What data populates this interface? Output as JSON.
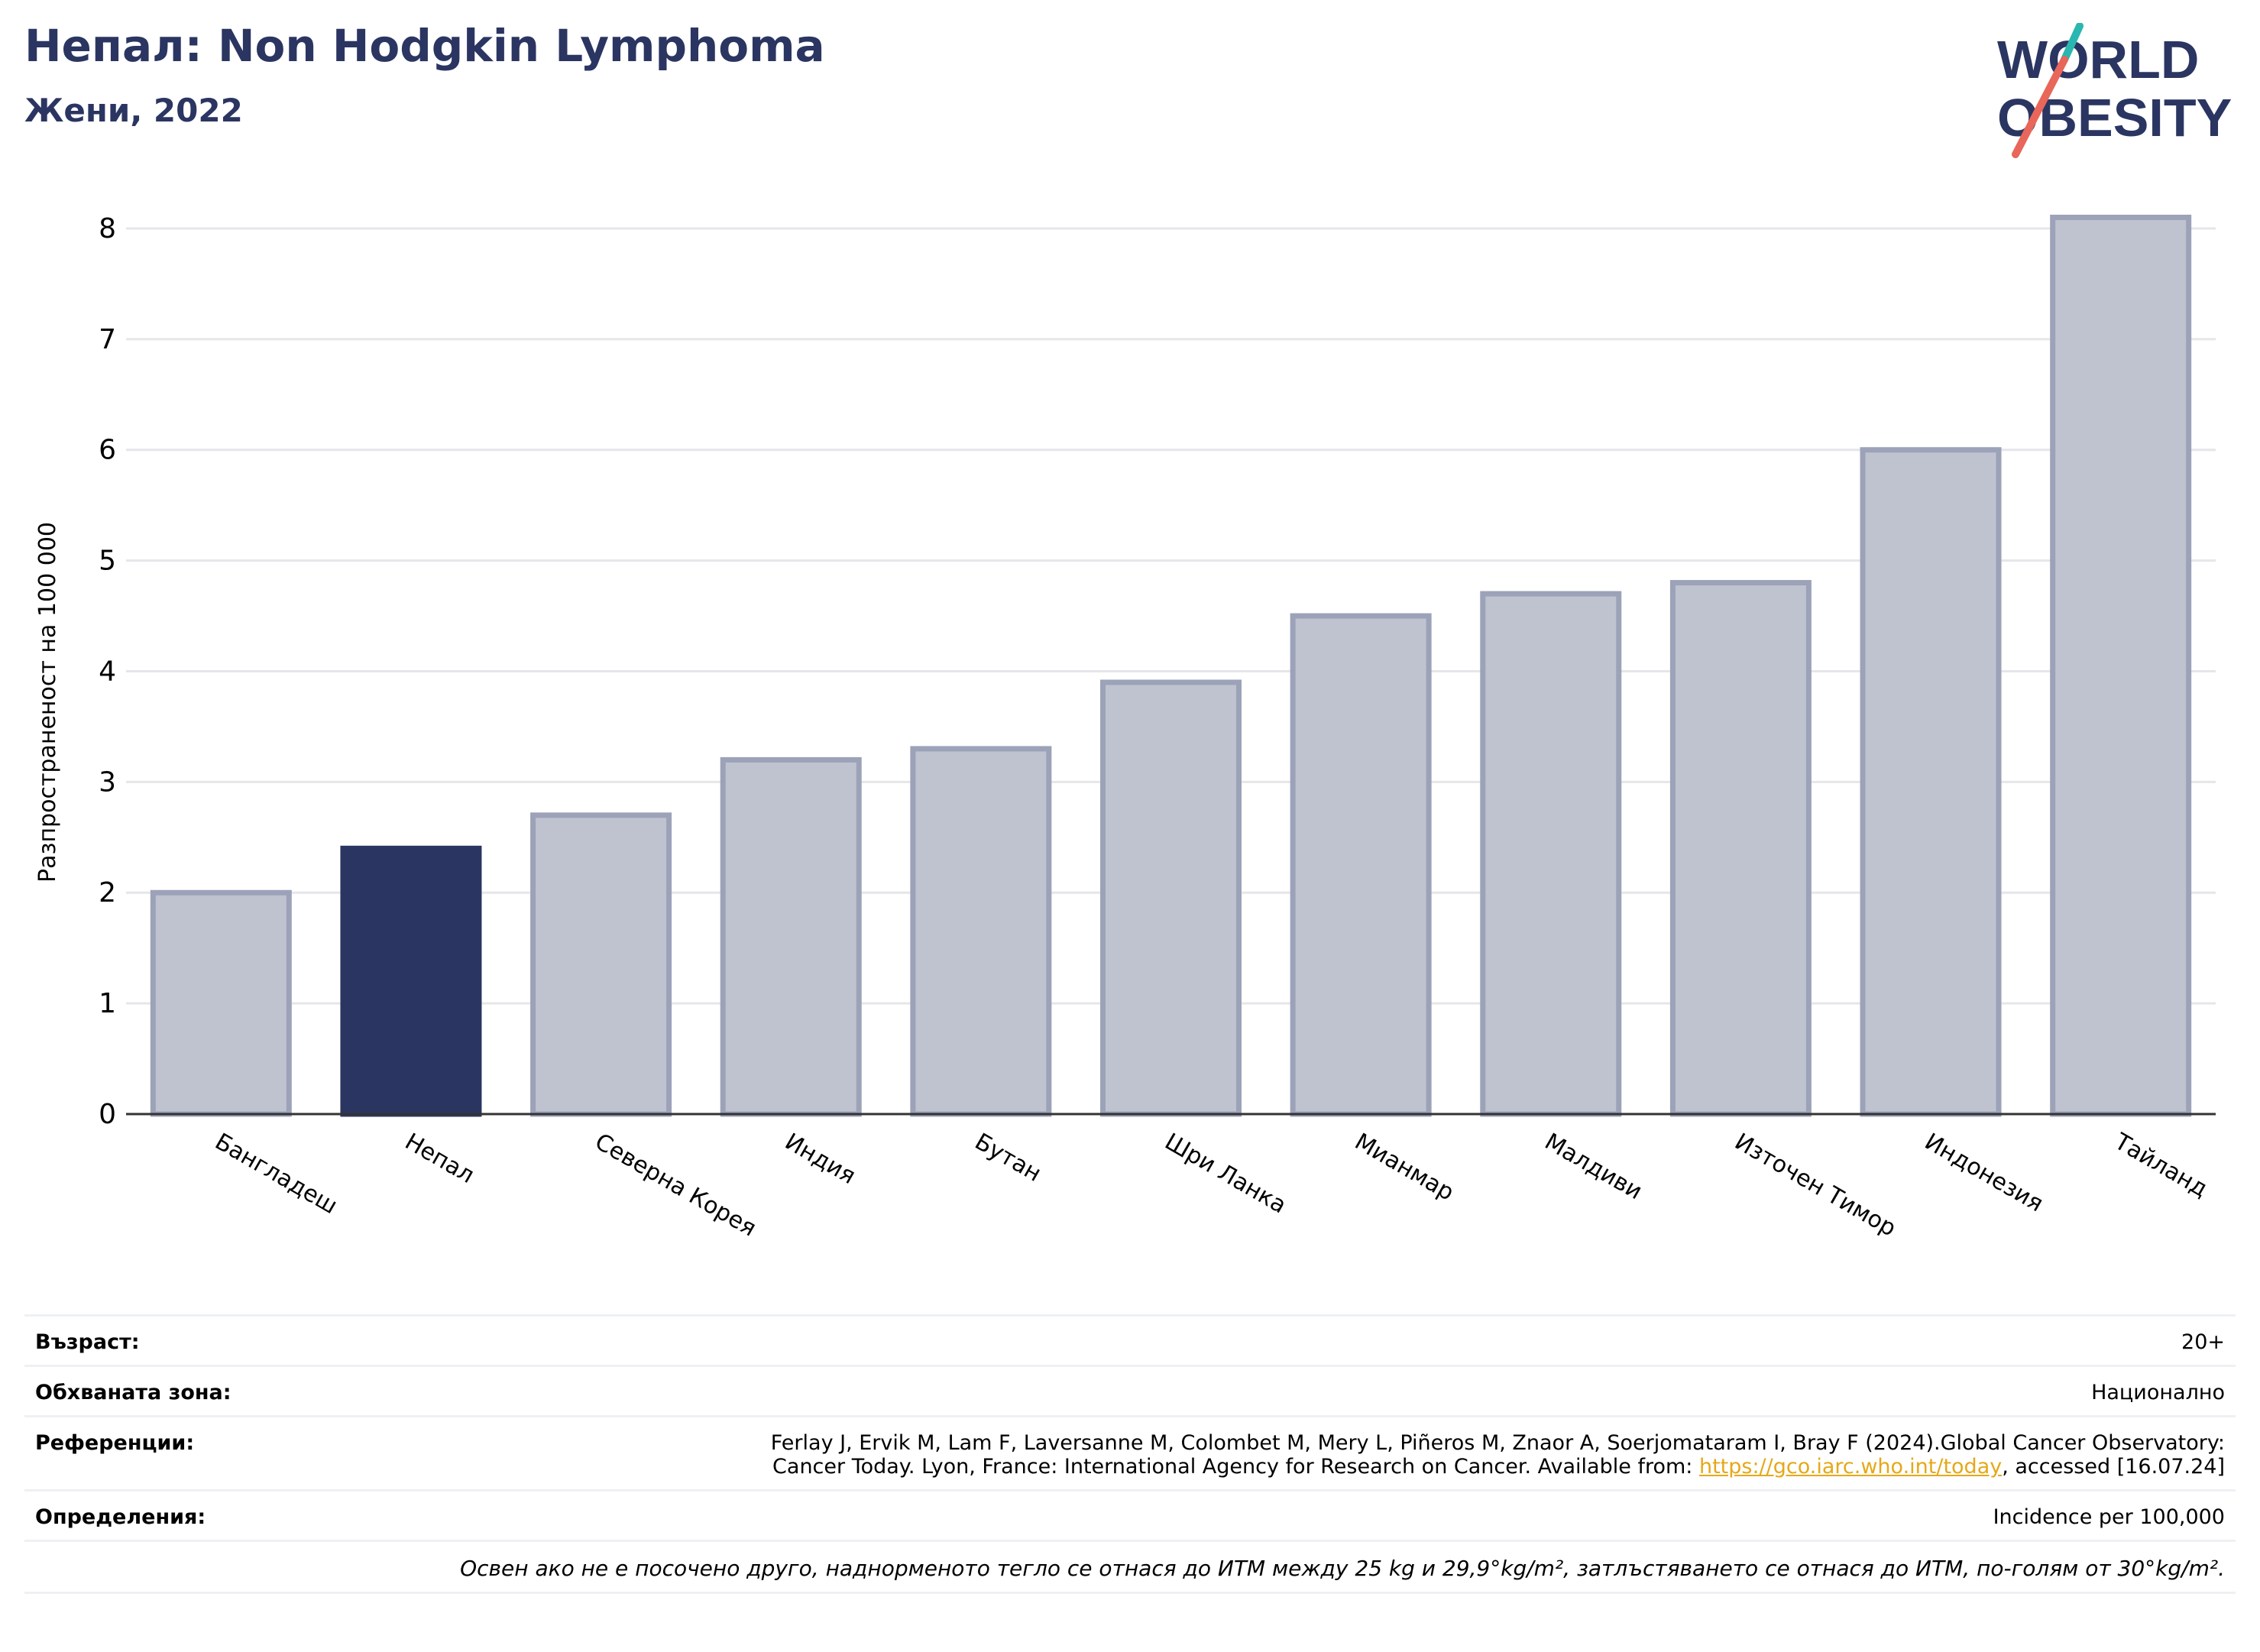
{
  "header": {
    "title": "Непал: Non Hodgkin Lymphoma",
    "subtitle": "Жени, 2022"
  },
  "logo": {
    "line1": "WORLD",
    "line2": "OBESITY",
    "colors": {
      "text": "#2b3561",
      "slash_teal": "#2ab7b0",
      "slash_red": "#e8665a"
    }
  },
  "chart_data": {
    "type": "bar",
    "title": "",
    "xlabel": "",
    "ylabel": "Разпространеност  на 100 000",
    "ylim": [
      0,
      8.2
    ],
    "yticks": [
      0,
      1,
      2,
      3,
      4,
      5,
      6,
      7,
      8
    ],
    "grid": true,
    "categories": [
      "Бангладеш",
      "Непал",
      "Северна Корея",
      "Индия",
      "Бутан",
      "Шри Ланка",
      "Мианмар",
      "Малдиви",
      "Източен Тимор",
      "Индонезия",
      "Тайланд"
    ],
    "values": [
      2.0,
      2.4,
      2.7,
      3.2,
      3.3,
      3.9,
      4.5,
      4.7,
      4.8,
      6.0,
      8.1
    ],
    "highlight": "Непал",
    "colors": {
      "bar": "#bfc3d0",
      "bar_edge": "#9ca2b8",
      "highlight": "#2b3561",
      "grid": "#e6e6ea",
      "axis": "#333333"
    }
  },
  "info": {
    "age_label": "Възраст:",
    "age_value": "20+",
    "coverage_label": "Обхваната зона:",
    "coverage_value": "Национално",
    "references_label": "Референции:",
    "references_line1": "Ferlay J, Ervik M, Lam F, Laversanne M, Colombet M, Mery L, Piñeros M, Znaor A, Soerjomataram I, Bray F (2024).Global Cancer Observatory:",
    "references_line2_before": "Cancer Today. Lyon, France: International Agency for Research on Cancer. Available from: ",
    "references_link": "https://gco.iarc.who.int/today",
    "references_line2_after": ", accessed [16.07.24]",
    "definitions_label": "Определения:",
    "definitions_value": "Incidence per 100,000",
    "note": "Освен ако не е посочено друго, наднорменото тегло се отнася до ИТМ между 25 kg и 29,9°kg/m², затлъстяването се отнася до ИТМ, по-голям от 30°kg/m²."
  }
}
